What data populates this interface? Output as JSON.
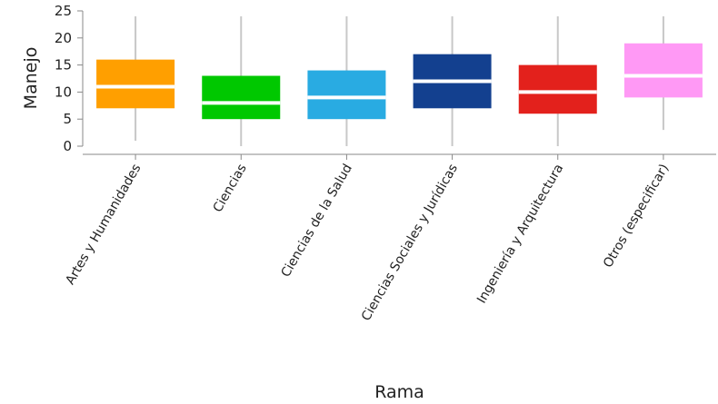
{
  "chart_data": {
    "type": "boxplot",
    "xlabel": "Rama",
    "ylabel": "Manejo",
    "ylim": [
      0,
      25
    ],
    "yticks": [
      0,
      5,
      10,
      15,
      20,
      25
    ],
    "grid": false,
    "categories": [
      "Artes y Humanidades",
      "Ciencias",
      "Ciencias de la Salud",
      "Ciencias Sociales y Jurídicas",
      "Ingeniería y Arquitectura",
      "Otros (especificar)"
    ],
    "boxes": [
      {
        "category": "Artes y Humanidades",
        "min": 1,
        "q1": 7,
        "median": 11,
        "q3": 16,
        "max": 24,
        "color": "#ff9f00"
      },
      {
        "category": "Ciencias",
        "min": 0,
        "q1": 5,
        "median": 8,
        "q3": 13,
        "max": 24,
        "color": "#00c800"
      },
      {
        "category": "Ciencias de la Salud",
        "min": 0,
        "q1": 5,
        "median": 9,
        "q3": 14,
        "max": 24,
        "color": "#29abe2"
      },
      {
        "category": "Ciencias Sociales y Jurídicas",
        "min": 0,
        "q1": 7,
        "median": 12,
        "q3": 17,
        "max": 24,
        "color": "#13408f"
      },
      {
        "category": "Ingeniería y Arquitectura",
        "min": 0,
        "q1": 6,
        "median": 10,
        "q3": 15,
        "max": 24,
        "color": "#e3211c"
      },
      {
        "category": "Otros (especificar)",
        "min": 3,
        "q1": 9,
        "median": 13,
        "q3": 19,
        "max": 24,
        "color": "#ff99f5"
      }
    ]
  }
}
